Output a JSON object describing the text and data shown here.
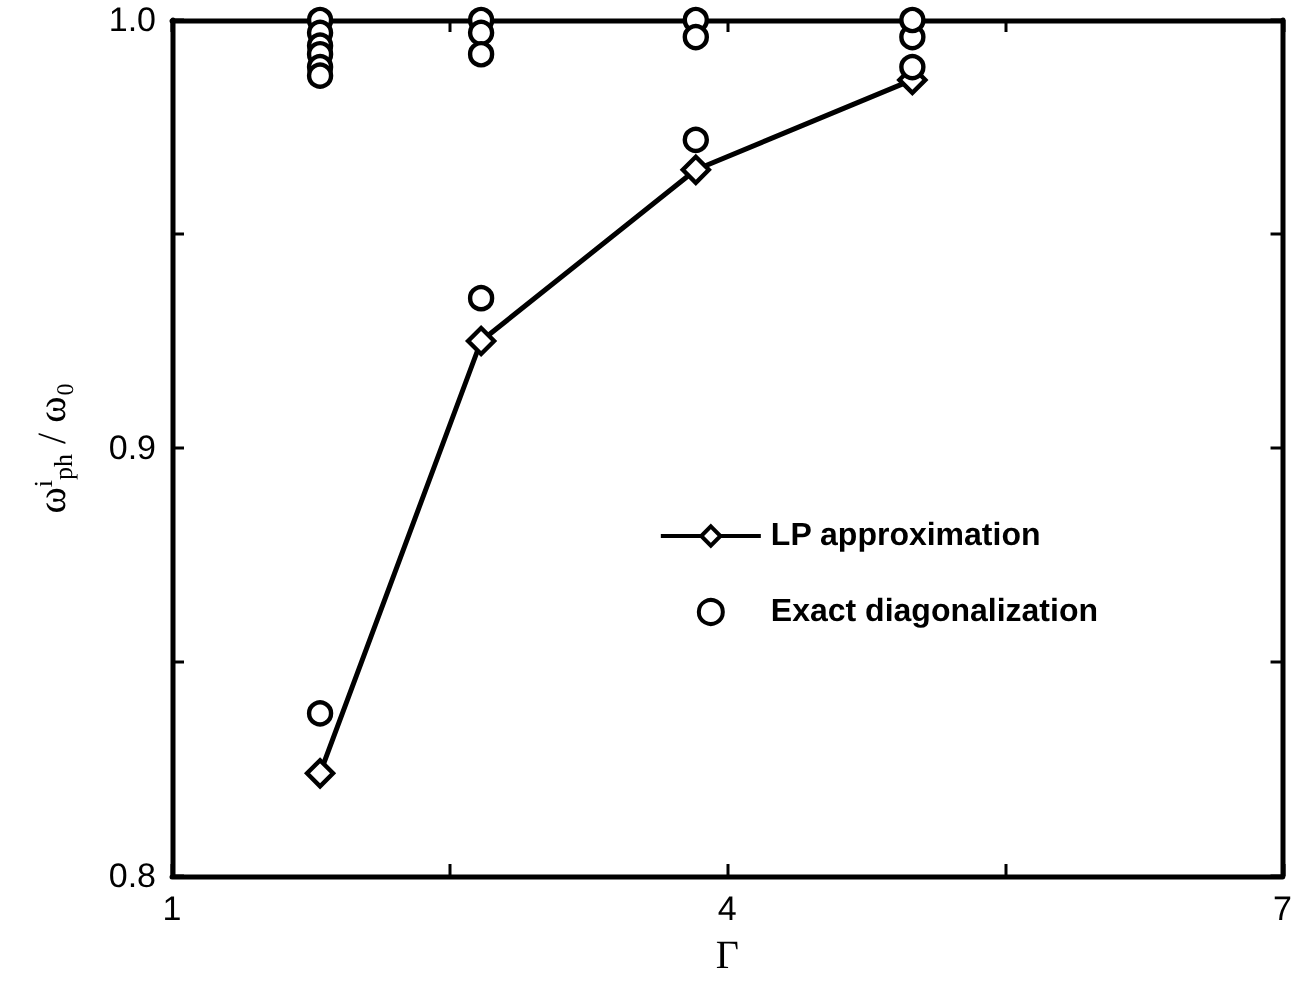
{
  "chart_data": {
    "type": "line",
    "xlabel": "Γ",
    "ylabel": "ω$^{i}$$_{ph}$ / ω₀",
    "xlim": [
      1,
      7
    ],
    "xticks": [
      1,
      {
        "value": 2.5,
        "label": null
      },
      4,
      {
        "value": 5.5,
        "label": null
      },
      7
    ],
    "ylim": [
      0.8,
      1.0
    ],
    "yticks": [
      {
        "value": 0.8,
        "label": "0.8"
      },
      {
        "value": 0.85,
        "label": null
      },
      {
        "value": 0.9,
        "label": "0.9"
      },
      {
        "value": 0.95,
        "label": null
      },
      {
        "value": 1.0,
        "label": "1.0"
      }
    ],
    "grid": false,
    "legend": "right",
    "series": [
      {
        "name": "LP approximation",
        "marker": "diamond",
        "line_style": "solid",
        "color": "#000000",
        "x": [
          1.8,
          2.67,
          3.83,
          5.0
        ],
        "values": [
          0.824,
          0.925,
          0.965,
          0.986
        ]
      },
      {
        "name": "Exact diagonalization",
        "type": "scatter",
        "marker": "circle",
        "color": "#000000",
        "x": [
          1.8,
          1.8,
          1.8,
          1.8,
          1.8,
          1.8,
          1.8,
          2.67,
          2.67,
          2.67,
          2.67,
          3.83,
          3.83,
          3.83,
          5.0,
          5.0,
          5.0
        ],
        "values": [
          0.838,
          1.0,
          0.997,
          0.994,
          0.992,
          0.989,
          0.987,
          0.935,
          1.0,
          0.997,
          0.992,
          0.972,
          1.0,
          0.996,
          0.989,
          0.996,
          1.0
        ]
      }
    ]
  }
}
